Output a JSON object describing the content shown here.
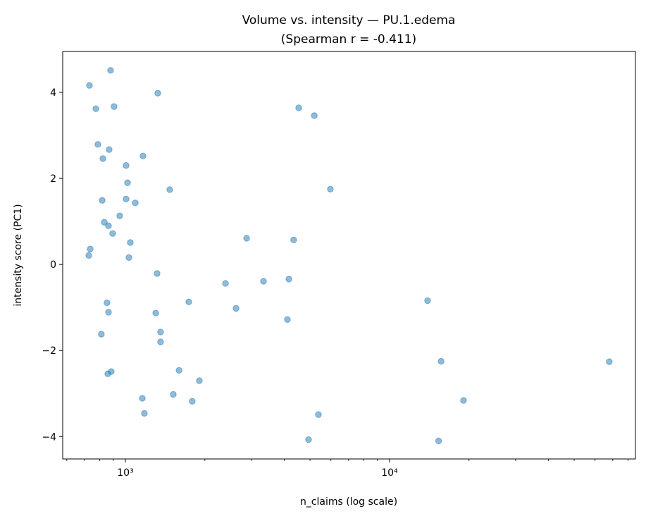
{
  "chart_data": {
    "type": "scatter",
    "title": "Volume vs. intensity — PU.1.edema",
    "subtitle": "(Spearman r = -0.411)",
    "xlabel": "n_claims (log scale)",
    "ylabel": "intensity score (PC1)",
    "xscale": "log",
    "xlim": [
      579,
      85300
    ],
    "ylim": [
      -4.52,
      4.95
    ],
    "xticks": [
      {
        "value": 1000,
        "label": "10³"
      },
      {
        "value": 10000,
        "label": "10⁴"
      }
    ],
    "yticks": [
      {
        "value": 4,
        "label": "4"
      },
      {
        "value": 2,
        "label": "2"
      },
      {
        "value": 0,
        "label": "0"
      },
      {
        "value": -2,
        "label": "−2"
      },
      {
        "value": -4,
        "label": "−4"
      }
    ],
    "grid": false,
    "color": "#1f77b4",
    "alpha": 0.5,
    "points": [
      [
        879,
        4.51
      ],
      [
        731,
        4.16
      ],
      [
        1326,
        3.98
      ],
      [
        773,
        3.62
      ],
      [
        906,
        3.67
      ],
      [
        4530,
        3.64
      ],
      [
        5190,
        3.46
      ],
      [
        787,
        2.79
      ],
      [
        868,
        2.67
      ],
      [
        822,
        2.46
      ],
      [
        1166,
        2.52
      ],
      [
        1006,
        2.3
      ],
      [
        1019,
        1.9
      ],
      [
        1472,
        1.74
      ],
      [
        5970,
        1.75
      ],
      [
        817,
        1.49
      ],
      [
        1006,
        1.52
      ],
      [
        1090,
        1.43
      ],
      [
        952,
        1.13
      ],
      [
        832,
        0.98
      ],
      [
        863,
        0.9
      ],
      [
        895,
        0.72
      ],
      [
        2877,
        0.61
      ],
      [
        4336,
        0.57
      ],
      [
        1044,
        0.51
      ],
      [
        736,
        0.36
      ],
      [
        727,
        0.21
      ],
      [
        1031,
        0.16
      ],
      [
        1318,
        -0.21
      ],
      [
        2393,
        -0.44
      ],
      [
        3334,
        -0.39
      ],
      [
        4159,
        -0.34
      ],
      [
        13930,
        -0.84
      ],
      [
        1738,
        -0.87
      ],
      [
        852,
        -0.89
      ],
      [
        2624,
        -1.02
      ],
      [
        863,
        -1.11
      ],
      [
        1303,
        -1.13
      ],
      [
        4105,
        -1.28
      ],
      [
        811,
        -1.62
      ],
      [
        1359,
        -1.57
      ],
      [
        1359,
        -1.8
      ],
      [
        15670,
        -2.25
      ],
      [
        67900,
        -2.26
      ],
      [
        1596,
        -2.46
      ],
      [
        884,
        -2.49
      ],
      [
        858,
        -2.54
      ],
      [
        1906,
        -2.7
      ],
      [
        1518,
        -3.02
      ],
      [
        1159,
        -3.11
      ],
      [
        1791,
        -3.18
      ],
      [
        19060,
        -3.16
      ],
      [
        1180,
        -3.46
      ],
      [
        5380,
        -3.49
      ],
      [
        4935,
        -4.07
      ],
      [
        15340,
        -4.1
      ]
    ]
  }
}
